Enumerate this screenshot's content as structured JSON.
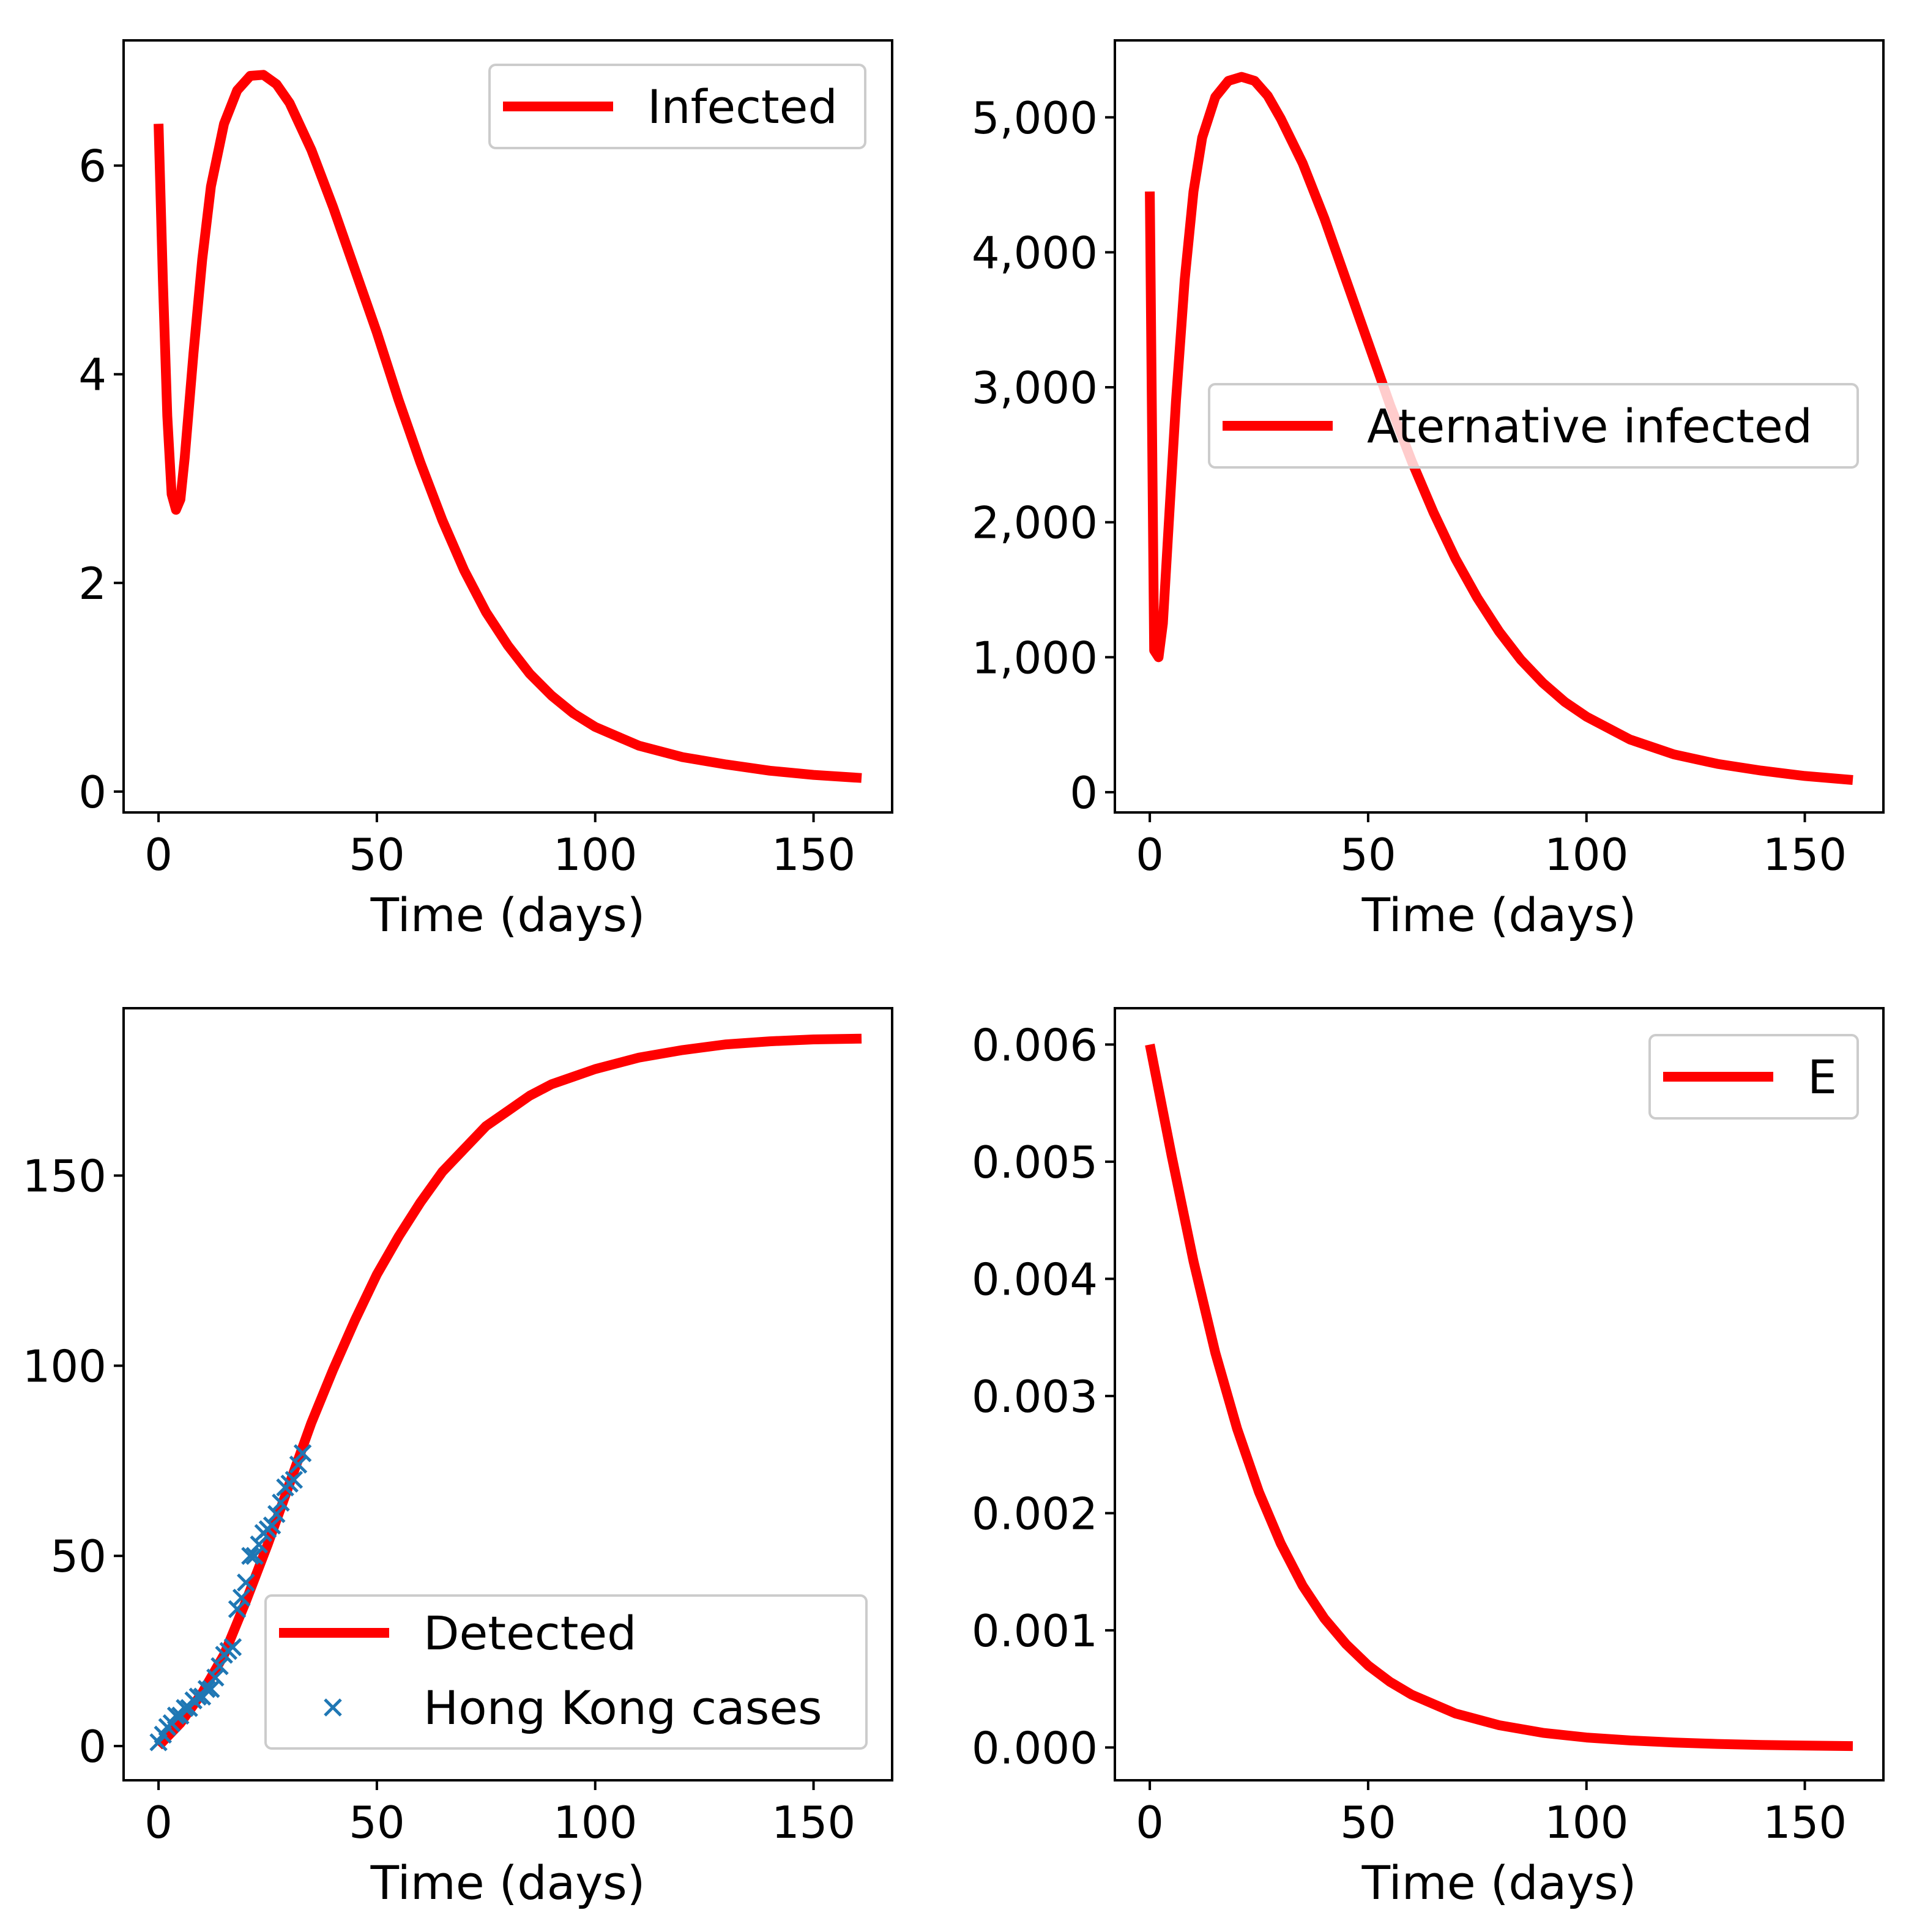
{
  "chart_data": [
    {
      "type": "line",
      "xlabel": "Time (days)",
      "ylabel": "",
      "xlim": [
        -8,
        168
      ],
      "ylim": [
        -0.2,
        7.2
      ],
      "xticks": [
        0,
        50,
        100,
        150
      ],
      "xtick_labels": [
        "0",
        "50",
        "100",
        "150"
      ],
      "yticks": [
        0,
        2,
        4,
        6
      ],
      "ytick_labels": [
        "0",
        "2",
        "4",
        "6"
      ],
      "grid": false,
      "legend_position": "upper right",
      "series": [
        {
          "name": "Infected",
          "color": "#ff0000",
          "x": [
            0,
            1,
            2,
            3,
            4,
            5,
            6,
            8,
            10,
            12,
            15,
            18,
            21,
            24,
            27,
            30,
            35,
            40,
            45,
            50,
            55,
            60,
            65,
            70,
            75,
            80,
            85,
            90,
            95,
            100,
            110,
            120,
            130,
            140,
            150,
            161
          ],
          "y": [
            6.4,
            4.9,
            3.6,
            2.85,
            2.7,
            2.8,
            3.2,
            4.2,
            5.1,
            5.8,
            6.4,
            6.72,
            6.86,
            6.87,
            6.78,
            6.6,
            6.15,
            5.6,
            5.0,
            4.4,
            3.75,
            3.15,
            2.6,
            2.12,
            1.72,
            1.4,
            1.13,
            0.92,
            0.75,
            0.62,
            0.44,
            0.33,
            0.26,
            0.2,
            0.16,
            0.13
          ]
        }
      ]
    },
    {
      "type": "line",
      "xlabel": "Time (days)",
      "ylabel": "",
      "xlim": [
        -8,
        168
      ],
      "ylim": [
        -150,
        5570
      ],
      "xticks": [
        0,
        50,
        100,
        150
      ],
      "xtick_labels": [
        "0",
        "50",
        "100",
        "150"
      ],
      "yticks": [
        0,
        1000,
        2000,
        3000,
        4000,
        5000
      ],
      "ytick_labels": [
        "0",
        "1,000",
        "2,000",
        "3,000",
        "4,000",
        "5,000"
      ],
      "grid": false,
      "legend_position": "center right",
      "series": [
        {
          "name": "Aternative infected",
          "color": "#ff0000",
          "x": [
            0,
            1,
            2,
            3,
            4,
            6,
            8,
            10,
            12,
            15,
            18,
            21,
            24,
            27,
            30,
            35,
            40,
            45,
            50,
            55,
            60,
            65,
            70,
            75,
            80,
            85,
            90,
            95,
            100,
            110,
            120,
            130,
            140,
            150,
            161
          ],
          "y": [
            4450,
            1050,
            1000,
            1250,
            1800,
            2900,
            3800,
            4450,
            4850,
            5150,
            5270,
            5300,
            5270,
            5160,
            4990,
            4660,
            4250,
            3790,
            3330,
            2870,
            2450,
            2070,
            1730,
            1440,
            1190,
            980,
            810,
            670,
            560,
            390,
            280,
            210,
            160,
            120,
            90
          ]
        }
      ]
    },
    {
      "type": "line",
      "xlabel": "Time (days)",
      "ylabel": "",
      "xlim": [
        -8,
        168
      ],
      "ylim": [
        -9,
        194
      ],
      "xticks": [
        0,
        50,
        100,
        150
      ],
      "xtick_labels": [
        "0",
        "50",
        "100",
        "150"
      ],
      "yticks": [
        0,
        50,
        100,
        150
      ],
      "ytick_labels": [
        "0",
        "50",
        "100",
        "150"
      ],
      "grid": false,
      "legend_position": "lower right",
      "series": [
        {
          "name": "Detected",
          "type": "line",
          "color": "#ff0000",
          "x": [
            0,
            5,
            10,
            15,
            20,
            25,
            30,
            35,
            40,
            45,
            50,
            55,
            60,
            65,
            70,
            75,
            80,
            85,
            90,
            95,
            100,
            110,
            120,
            130,
            140,
            150,
            161
          ],
          "y": [
            0,
            6,
            14,
            24,
            38,
            53,
            69,
            85,
            99,
            112,
            124,
            134,
            143,
            151,
            157,
            163,
            167,
            171,
            174,
            176,
            178,
            181,
            183,
            184.5,
            185.3,
            185.8,
            186
          ]
        },
        {
          "name": "Hong Kong cases",
          "type": "scatter",
          "marker": "x",
          "color": "#1f77b4",
          "x": [
            0,
            1,
            2,
            3,
            4,
            5,
            6,
            7,
            8,
            9,
            10,
            11,
            12,
            13,
            14,
            15,
            16,
            17,
            18,
            19,
            20,
            21,
            22,
            23,
            24,
            25,
            26,
            27,
            28,
            29,
            30,
            31,
            32,
            33
          ],
          "y": [
            1,
            3,
            5,
            6,
            8,
            8,
            10,
            10,
            12,
            13,
            13,
            15,
            15,
            18,
            21,
            24,
            25,
            26,
            36,
            39,
            43,
            50,
            50,
            53,
            56,
            57,
            58,
            61,
            64,
            68,
            69,
            70,
            74,
            77
          ]
        }
      ]
    },
    {
      "type": "line",
      "xlabel": "Time (days)",
      "ylabel": "",
      "xlim": [
        -8,
        168
      ],
      "ylim": [
        -0.00028,
        0.00631
      ],
      "xticks": [
        0,
        50,
        100,
        150
      ],
      "xtick_labels": [
        "0",
        "50",
        "100",
        "150"
      ],
      "yticks": [
        0,
        0.001,
        0.002,
        0.003,
        0.004,
        0.005,
        0.006
      ],
      "ytick_labels": [
        "0.000",
        "0.001",
        "0.002",
        "0.003",
        "0.004",
        "0.005",
        "0.006"
      ],
      "grid": false,
      "legend_position": "upper right",
      "series": [
        {
          "name": "E",
          "color": "#ff0000",
          "x": [
            0,
            5,
            10,
            15,
            20,
            25,
            30,
            35,
            40,
            45,
            50,
            55,
            60,
            70,
            80,
            90,
            100,
            110,
            120,
            130,
            140,
            150,
            161
          ],
          "y": [
            0.006,
            0.00505,
            0.00415,
            0.00337,
            0.00272,
            0.00218,
            0.00174,
            0.00138,
            0.0011,
            0.00088,
            0.0007,
            0.00056,
            0.00045,
            0.00029,
            0.00019,
            0.000125,
            8.5e-05,
            6e-05,
            4.2e-05,
            3e-05,
            2.2e-05,
            1.6e-05,
            1.2e-05
          ]
        }
      ]
    }
  ]
}
